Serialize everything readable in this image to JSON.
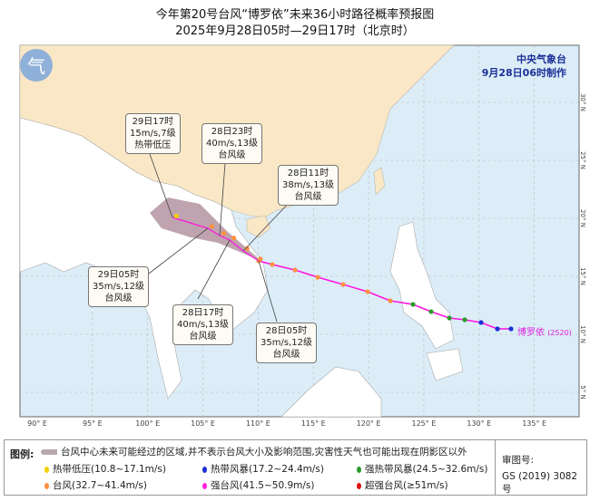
{
  "title": "今年第20号台风“博罗依”未来36小时路径概率预报图",
  "subtitle": "2025年9月28日05时—29日17时（北京时）",
  "agency": {
    "name": "中央气象台",
    "issued": "9月28日06时制作"
  },
  "typhoon_label": "博罗依",
  "typhoon_code": "(2520)",
  "lon_labels": [
    "90° E",
    "95° E",
    "100° E",
    "105° E",
    "110° E",
    "115° E",
    "120° E",
    "125° E",
    "130° E",
    "135° E"
  ],
  "lat_labels": [
    "5° N",
    "10° N",
    "15° N",
    "20° N",
    "25° N",
    "30° N"
  ],
  "forecast_points": [
    {
      "time": "28日05时",
      "wind": "35m/s,12级",
      "level": "台风级",
      "lon": 110.2,
      "lat": 16.5
    },
    {
      "time": "28日11时",
      "wind": "38m/s,13级",
      "level": "台风级",
      "lon": 109,
      "lat": 17.4
    },
    {
      "time": "28日17时",
      "wind": "40m/s,13级",
      "level": "台风级",
      "lon": 107.8,
      "lat": 18.3
    },
    {
      "time": "28日23时",
      "wind": "40m/s,13级",
      "level": "台风级",
      "lon": 106.9,
      "lat": 18.7
    },
    {
      "time": "29日05时",
      "wind": "35m/s,12级",
      "level": "台风级",
      "lon": 105.8,
      "lat": 19.3
    },
    {
      "time": "29日17时",
      "wind": "15m/s,7级",
      "level": "热带低压",
      "lon": 102.6,
      "lat": 20.2
    }
  ],
  "legend": {
    "title": "图例:",
    "cone": "台风中心未来可能经过的区域,并不表示台风大小及影响范围,灾害性天气也可能出现在阴影区以外",
    "items": [
      {
        "label": "热带低压(10.8~17.1m/s)",
        "color": "#f5d000"
      },
      {
        "label": "热带风暴(17.2~24.4m/s)",
        "color": "#1c2fd8"
      },
      {
        "label": "强热带风暴(24.5~32.6m/s)",
        "color": "#2a9a2a"
      },
      {
        "label": "台风(32.7~41.4m/s)",
        "color": "#ff9040"
      },
      {
        "label": "强台风(41.5~50.9m/s)",
        "color": "#ff20e0"
      },
      {
        "label": "超强台风(≥51m/s)",
        "color": "#e01010"
      }
    ],
    "review_label": "审图号:",
    "review_no": "GS (2019) 3082号"
  }
}
